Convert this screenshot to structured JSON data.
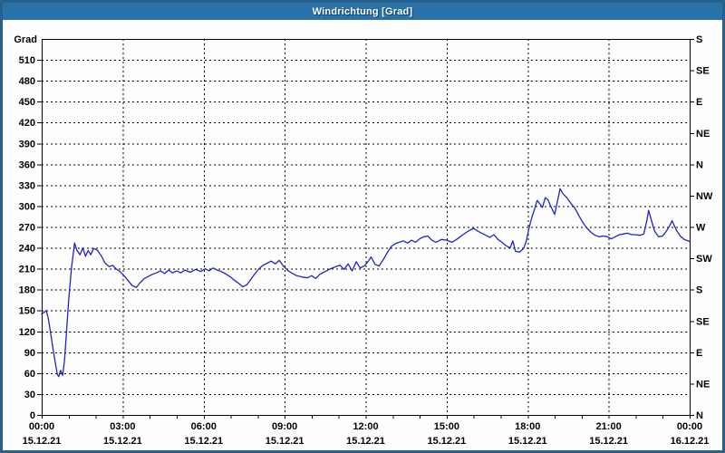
{
  "window": {
    "title": "Windrichtung [Grad]"
  },
  "colors": {
    "frame": "#27618F",
    "titlebar_bg": "#2A72A8",
    "titlebar_text": "#FFFFFF",
    "plot_bg": "#FFFFFF",
    "grid_line": "#000000",
    "axis_line": "#000000",
    "tick_label": "#000000",
    "series_line": "#2222CC"
  },
  "chart_data": {
    "type": "line",
    "title": "Windrichtung [Grad]",
    "grid": "dashed",
    "legend": "none",
    "y_axis_left": {
      "label": "Grad",
      "range": [
        0,
        540
      ],
      "tick_step": 30,
      "ticks": [
        0,
        30,
        60,
        90,
        120,
        150,
        180,
        210,
        240,
        270,
        300,
        330,
        360,
        390,
        420,
        450,
        480,
        510
      ]
    },
    "y_axis_right": {
      "ticks": [
        {
          "v": 540,
          "label": "S"
        },
        {
          "v": 495,
          "label": "SE"
        },
        {
          "v": 450,
          "label": "E"
        },
        {
          "v": 405,
          "label": "NE"
        },
        {
          "v": 360,
          "label": "N"
        },
        {
          "v": 315,
          "label": "NW"
        },
        {
          "v": 270,
          "label": "W"
        },
        {
          "v": 225,
          "label": "SW"
        },
        {
          "v": 180,
          "label": "S"
        },
        {
          "v": 135,
          "label": "SE"
        },
        {
          "v": 90,
          "label": "E"
        },
        {
          "v": 45,
          "label": "NE"
        },
        {
          "v": 0,
          "label": "N"
        }
      ]
    },
    "x_axis": {
      "range_hours": [
        0,
        24
      ],
      "minor_tick_hours": 1,
      "major_ticks": [
        {
          "hour": 0,
          "time": "00:00",
          "date": "15.12.21"
        },
        {
          "hour": 3,
          "time": "03:00",
          "date": "15.12.21"
        },
        {
          "hour": 6,
          "time": "06:00",
          "date": "15.12.21"
        },
        {
          "hour": 9,
          "time": "09:00",
          "date": "15.12.21"
        },
        {
          "hour": 12,
          "time": "12:00",
          "date": "15.12.21"
        },
        {
          "hour": 15,
          "time": "15:00",
          "date": "15.12.21"
        },
        {
          "hour": 18,
          "time": "18:00",
          "date": "15.12.21"
        },
        {
          "hour": 21,
          "time": "21:00",
          "date": "15.12.21"
        },
        {
          "hour": 24,
          "time": "00:00",
          "date": "16.12.21"
        }
      ]
    },
    "series": [
      {
        "name": "Windrichtung",
        "color": "#2222CC",
        "points": [
          [
            0,
            145
          ],
          [
            0.08,
            147
          ],
          [
            0.17,
            150
          ],
          [
            0.25,
            138
          ],
          [
            0.33,
            118
          ],
          [
            0.42,
            95
          ],
          [
            0.5,
            76
          ],
          [
            0.58,
            58
          ],
          [
            0.63,
            55
          ],
          [
            0.7,
            64
          ],
          [
            0.78,
            57
          ],
          [
            0.85,
            80
          ],
          [
            0.92,
            120
          ],
          [
            1.0,
            165
          ],
          [
            1.1,
            210
          ],
          [
            1.22,
            247
          ],
          [
            1.3,
            237
          ],
          [
            1.42,
            230
          ],
          [
            1.52,
            240
          ],
          [
            1.62,
            228
          ],
          [
            1.72,
            236
          ],
          [
            1.82,
            230
          ],
          [
            1.92,
            239
          ],
          [
            2.05,
            237
          ],
          [
            2.2,
            229
          ],
          [
            2.35,
            218
          ],
          [
            2.5,
            213
          ],
          [
            2.62,
            215
          ],
          [
            2.75,
            210
          ],
          [
            2.9,
            206
          ],
          [
            3.05,
            200
          ],
          [
            3.2,
            193
          ],
          [
            3.35,
            186
          ],
          [
            3.5,
            183
          ],
          [
            3.65,
            190
          ],
          [
            3.8,
            196
          ],
          [
            3.95,
            199
          ],
          [
            4.1,
            202
          ],
          [
            4.25,
            204
          ],
          [
            4.4,
            207
          ],
          [
            4.55,
            203
          ],
          [
            4.7,
            208
          ],
          [
            4.85,
            204
          ],
          [
            5.0,
            207
          ],
          [
            5.15,
            204
          ],
          [
            5.3,
            208
          ],
          [
            5.5,
            205
          ],
          [
            5.7,
            209
          ],
          [
            5.9,
            206
          ],
          [
            6.05,
            210
          ],
          [
            6.2,
            207
          ],
          [
            6.35,
            211
          ],
          [
            6.5,
            208
          ],
          [
            6.65,
            206
          ],
          [
            6.8,
            203
          ],
          [
            7.0,
            198
          ],
          [
            7.15,
            193
          ],
          [
            7.3,
            189
          ],
          [
            7.45,
            184
          ],
          [
            7.6,
            187
          ],
          [
            7.75,
            195
          ],
          [
            7.9,
            203
          ],
          [
            8.05,
            210
          ],
          [
            8.2,
            215
          ],
          [
            8.35,
            218
          ],
          [
            8.5,
            221
          ],
          [
            8.65,
            217
          ],
          [
            8.8,
            222
          ],
          [
            8.95,
            214
          ],
          [
            9.1,
            208
          ],
          [
            9.25,
            204
          ],
          [
            9.45,
            200
          ],
          [
            9.65,
            198
          ],
          [
            9.85,
            197
          ],
          [
            10.0,
            200
          ],
          [
            10.15,
            196
          ],
          [
            10.3,
            202
          ],
          [
            10.5,
            206
          ],
          [
            10.7,
            210
          ],
          [
            10.9,
            213
          ],
          [
            11.05,
            215
          ],
          [
            11.2,
            209
          ],
          [
            11.35,
            217
          ],
          [
            11.5,
            207
          ],
          [
            11.65,
            220
          ],
          [
            11.8,
            211
          ],
          [
            11.95,
            214
          ],
          [
            12.1,
            221
          ],
          [
            12.2,
            227
          ],
          [
            12.35,
            216
          ],
          [
            12.5,
            214
          ],
          [
            12.65,
            223
          ],
          [
            12.8,
            233
          ],
          [
            12.95,
            242
          ],
          [
            13.1,
            246
          ],
          [
            13.25,
            248
          ],
          [
            13.4,
            250
          ],
          [
            13.55,
            247
          ],
          [
            13.7,
            251
          ],
          [
            13.85,
            248
          ],
          [
            14.0,
            253
          ],
          [
            14.15,
            256
          ],
          [
            14.3,
            257
          ],
          [
            14.45,
            251
          ],
          [
            14.6,
            248
          ],
          [
            14.8,
            252
          ],
          [
            15.0,
            251
          ],
          [
            15.2,
            248
          ],
          [
            15.4,
            253
          ],
          [
            15.6,
            259
          ],
          [
            15.8,
            264
          ],
          [
            16.0,
            268
          ],
          [
            16.15,
            264
          ],
          [
            16.3,
            261
          ],
          [
            16.45,
            258
          ],
          [
            16.6,
            255
          ],
          [
            16.75,
            259
          ],
          [
            16.9,
            252
          ],
          [
            17.05,
            248
          ],
          [
            17.2,
            243
          ],
          [
            17.35,
            240
          ],
          [
            17.45,
            250
          ],
          [
            17.55,
            235
          ],
          [
            17.7,
            234
          ],
          [
            17.85,
            239
          ],
          [
            17.95,
            250
          ],
          [
            18.05,
            268
          ],
          [
            18.15,
            283
          ],
          [
            18.25,
            295
          ],
          [
            18.35,
            308
          ],
          [
            18.45,
            303
          ],
          [
            18.55,
            298
          ],
          [
            18.65,
            312
          ],
          [
            18.75,
            309
          ],
          [
            18.85,
            300
          ],
          [
            19.0,
            288
          ],
          [
            19.1,
            306
          ],
          [
            19.2,
            325
          ],
          [
            19.3,
            318
          ],
          [
            19.45,
            312
          ],
          [
            19.6,
            304
          ],
          [
            19.75,
            297
          ],
          [
            19.9,
            286
          ],
          [
            20.05,
            276
          ],
          [
            20.2,
            268
          ],
          [
            20.35,
            262
          ],
          [
            20.5,
            258
          ],
          [
            20.65,
            256
          ],
          [
            20.8,
            257
          ],
          [
            20.95,
            256
          ],
          [
            21.1,
            253
          ],
          [
            21.25,
            256
          ],
          [
            21.4,
            259
          ],
          [
            21.55,
            260
          ],
          [
            21.7,
            261
          ],
          [
            21.85,
            259
          ],
          [
            22.0,
            259
          ],
          [
            22.15,
            258
          ],
          [
            22.3,
            260
          ],
          [
            22.42,
            280
          ],
          [
            22.48,
            294
          ],
          [
            22.58,
            280
          ],
          [
            22.7,
            264
          ],
          [
            22.85,
            256
          ],
          [
            23.0,
            257
          ],
          [
            23.1,
            262
          ],
          [
            23.25,
            271
          ],
          [
            23.35,
            279
          ],
          [
            23.5,
            266
          ],
          [
            23.65,
            257
          ],
          [
            23.8,
            252
          ],
          [
            23.95,
            250
          ],
          [
            24.0,
            249
          ]
        ]
      }
    ]
  }
}
